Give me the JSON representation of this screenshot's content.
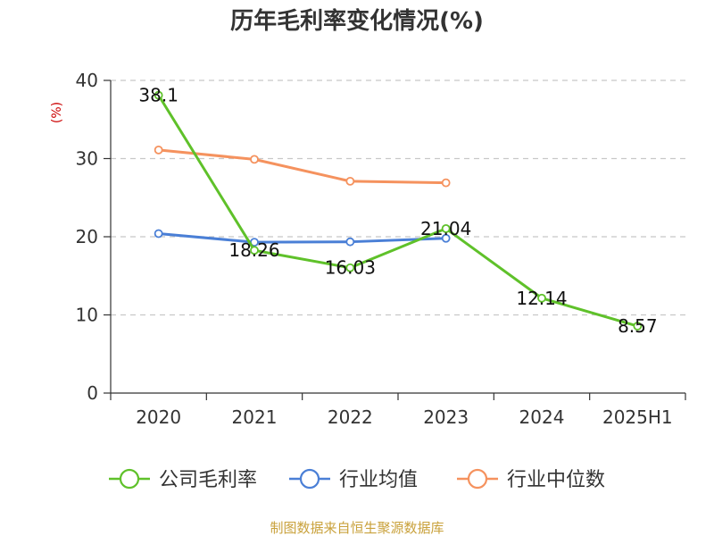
{
  "chart_data": {
    "type": "line",
    "title": "历年毛利率变化情况(%)",
    "ylabel": "(%)",
    "xlabel": "",
    "categories": [
      "2020",
      "2021",
      "2022",
      "2023",
      "2024",
      "2025H1"
    ],
    "ylim": [
      0,
      40
    ],
    "yticks": [
      0,
      10,
      20,
      30,
      40
    ],
    "grid": true,
    "legend_position": "bottom",
    "series": [
      {
        "name": "公司毛利率",
        "color": "#5fc12a",
        "values": [
          38.1,
          18.26,
          16.03,
          21.04,
          12.14,
          8.57
        ],
        "labels": [
          "38.1",
          "18.26",
          "16.03",
          "21.04",
          "12.14",
          "8.57"
        ]
      },
      {
        "name": "行业均值",
        "color": "#4a7fd6",
        "values": [
          20.4,
          19.3,
          19.35,
          19.8,
          null,
          null
        ]
      },
      {
        "name": "行业中位数",
        "color": "#f5925e",
        "values": [
          31.1,
          29.9,
          27.1,
          26.9,
          null,
          null
        ]
      }
    ],
    "source": "制图数据来自恒生聚源数据库"
  }
}
